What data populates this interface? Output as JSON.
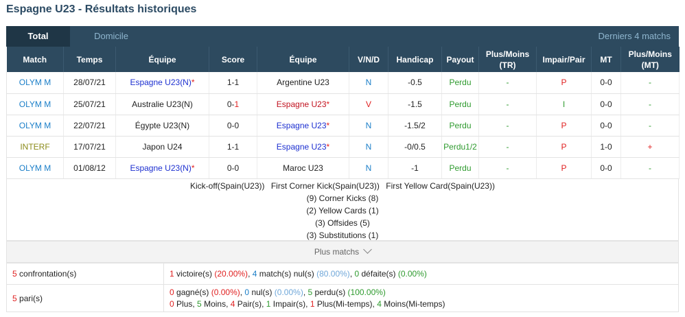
{
  "title": "Espagne U23 - Résultats historiques",
  "tabs": {
    "total": "Total",
    "domicile": "Domicile",
    "derniers": "Derniers 4 matchs"
  },
  "headers": {
    "match": "Match",
    "temps": "Temps",
    "equipe_home": "Équipe",
    "score": "Score",
    "equipe_away": "Équipe",
    "vnd": "V/N/D",
    "handicap": "Handicap",
    "payout": "Payout",
    "plusmoins_tr_1": "Plus/Moins",
    "plusmoins_tr_2": "(TR)",
    "impair_pair": "Impair/Pair",
    "mt": "MT",
    "plusmoins_mt_1": "Plus/Moins",
    "plusmoins_mt_2": "(MT)"
  },
  "rows": [
    {
      "match": "OLYM M",
      "date": "28/07/21",
      "home": "Espagne U23",
      "home_suffix": "(N)",
      "home_star": "*",
      "score_h": "1",
      "score_sep": "-",
      "score_a": "1",
      "away": "Argentine U23",
      "away_star": "",
      "vnd": "N",
      "handicap": "-0.5",
      "payout": "Perdu",
      "pm_tr": "-",
      "ip": "P",
      "mt": "0-0",
      "pm_mt": "-"
    },
    {
      "match": "OLYM M",
      "date": "25/07/21",
      "home": "Australie U23",
      "home_suffix": "(N)",
      "home_star": "",
      "score_h": "0",
      "score_sep": "-",
      "score_a": "1",
      "away": "Espagne U23",
      "away_star": "*",
      "vnd": "V",
      "handicap": "-1.5",
      "payout": "Perdu",
      "pm_tr": "-",
      "ip": "I",
      "mt": "0-0",
      "pm_mt": "-"
    },
    {
      "match": "OLYM M",
      "date": "22/07/21",
      "home": "Égypte U23",
      "home_suffix": "(N)",
      "home_star": "",
      "score_h": "0",
      "score_sep": "-",
      "score_a": "0",
      "away": "Espagne U23",
      "away_star": "*",
      "vnd": "N",
      "handicap": "-1.5/2",
      "payout": "Perdu",
      "pm_tr": "-",
      "ip": "P",
      "mt": "0-0",
      "pm_mt": "-"
    },
    {
      "match": "INTERF",
      "date": "17/07/21",
      "home": "Japon U24",
      "home_suffix": "",
      "home_star": "",
      "score_h": "1",
      "score_sep": "-",
      "score_a": "1",
      "away": "Espagne U23",
      "away_star": "*",
      "vnd": "N",
      "handicap": "-0/0.5",
      "payout": "Perdu1/2",
      "pm_tr": "-",
      "ip": "P",
      "mt": "1-0",
      "pm_mt": "+"
    },
    {
      "match": "OLYM M",
      "date": "01/08/12",
      "home": "Espagne U23",
      "home_suffix": "(N)",
      "home_star": "*",
      "score_h": "0",
      "score_sep": "-",
      "score_a": "0",
      "away": "Maroc U23",
      "away_star": "",
      "vnd": "N",
      "handicap": "-1",
      "payout": "Perdu",
      "pm_tr": "-",
      "ip": "P",
      "mt": "0-0",
      "pm_mt": "-"
    }
  ],
  "stats": {
    "labels": [
      "Kick-off(Spain(U23))",
      "First Corner Kick(Spain(U23))",
      "First Yellow Card(Spain(U23))"
    ],
    "lines": [
      "(9) Corner Kicks (8)",
      "(2) Yellow Cards (1)",
      "(3) Offsides (5)",
      "(3) Substitutions (1)"
    ]
  },
  "plus_matchs": "Plus matchs",
  "summary": {
    "confrontation_count": "5",
    "confrontation_label": " confrontation(s)",
    "victoires_n": "1",
    "victoires_label": " victoire(s) ",
    "victoires_pct": "(20.00%)",
    "nuls_n": "4",
    "nuls_label": " match(s) nul(s) ",
    "nuls_pct": "(80.00%)",
    "defaites_n": "0",
    "defaites_label": " défaite(s) ",
    "defaites_pct": "(0.00%)",
    "paris_count": "5",
    "paris_label": " pari(s)",
    "gagne_n": "0",
    "gagne_label": " gagné(s) ",
    "gagne_pct": "(0.00%)",
    "nul_n": "0",
    "nul_label": " nul(s) ",
    "nul_pct": "(0.00%)",
    "perdu_n": "5",
    "perdu_label": " perdu(s) ",
    "perdu_pct": "(100.00%)",
    "plus_n": "0",
    "plus_label": " Plus, ",
    "moins_n": "5",
    "moins_label": " Moins, ",
    "pair_n": "4",
    "pair_label": " Pair(s), ",
    "impair_n": "1",
    "impair_label": " Impair(s), ",
    "plusmt_n": "1",
    "plusmt_label": " Plus(Mi-temps), ",
    "moinsmt_n": "4",
    "moinsmt_label": " Moins(Mi-temps)"
  }
}
